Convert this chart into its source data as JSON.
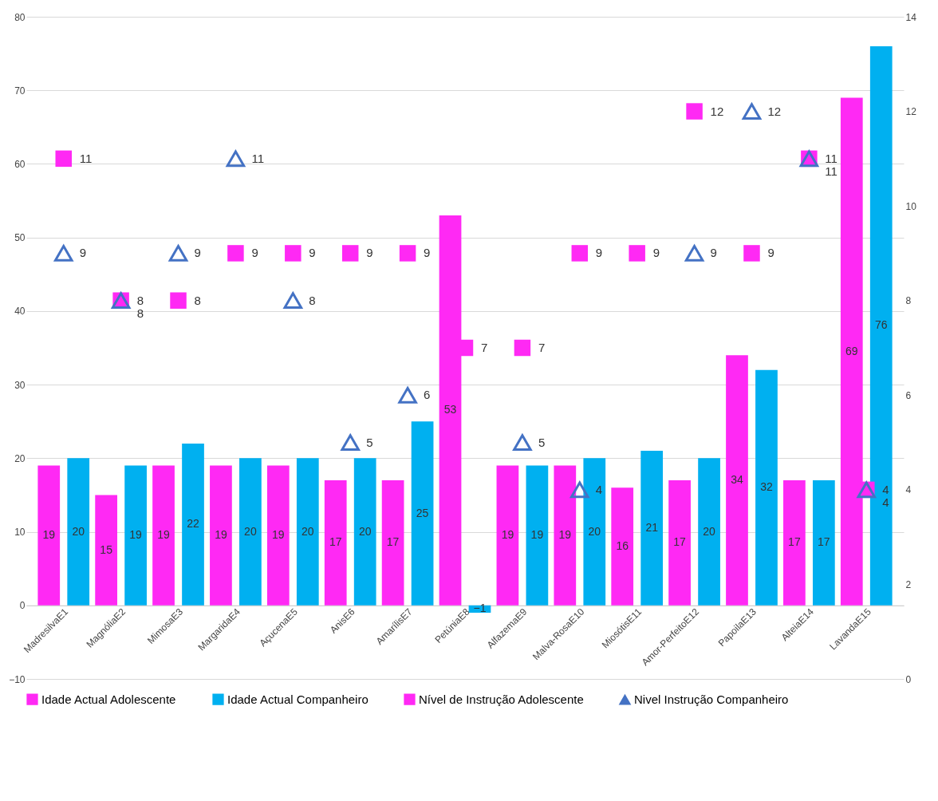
{
  "chart_data": {
    "type": "bar",
    "categories": [
      "MadresilvaE1",
      "MagnóliaE2",
      "MimosaE3",
      "MargaridaE4",
      "AçucenaE5",
      "AnisE6",
      "AmarílisE7",
      "PetúniaE8",
      "AlfazemaE9",
      "Malva-RosaE10",
      "MiosótisE11",
      "Amor-PerfeitoE12",
      "PapoilaE13",
      "AlteiaE14",
      "LavandaE15"
    ],
    "series": [
      {
        "name": "Idade Actual Adolescente",
        "color": "#ff29f4",
        "values": [
          19,
          15,
          19,
          19,
          19,
          17,
          17,
          53,
          19,
          19,
          16,
          17,
          34,
          17,
          69
        ]
      },
      {
        "name": "Idade Actual Companheiro",
        "color": "#00b0f0",
        "values": [
          20,
          19,
          22,
          20,
          20,
          20,
          25,
          -1,
          19,
          20,
          21,
          20,
          32,
          17,
          76
        ]
      },
      {
        "name": "Nível de Instrução Adolescente",
        "type": "scatter",
        "axis": "y2",
        "marker": "square",
        "color": "#ff29f4",
        "values": [
          11,
          8,
          8,
          9,
          9,
          9,
          9,
          7,
          7,
          9,
          9,
          12,
          9,
          11,
          4
        ]
      },
      {
        "name": "Nivel Instrução Companheiro",
        "type": "scatter",
        "axis": "y2",
        "marker": "triangle",
        "color": "#4472c4",
        "values": [
          9,
          8,
          9,
          11,
          8,
          5,
          6,
          null,
          5,
          4,
          null,
          9,
          12,
          11,
          4
        ]
      }
    ],
    "ylim": [
      -10,
      80
    ],
    "yticks": [
      -10,
      0,
      10,
      20,
      30,
      40,
      50,
      60,
      70,
      80
    ],
    "y2lim": [
      0,
      14
    ],
    "y2ticks": [
      0,
      2,
      4,
      6,
      8,
      10,
      12,
      14
    ],
    "grid": "y",
    "legend": "bottom",
    "data_labels": true
  }
}
